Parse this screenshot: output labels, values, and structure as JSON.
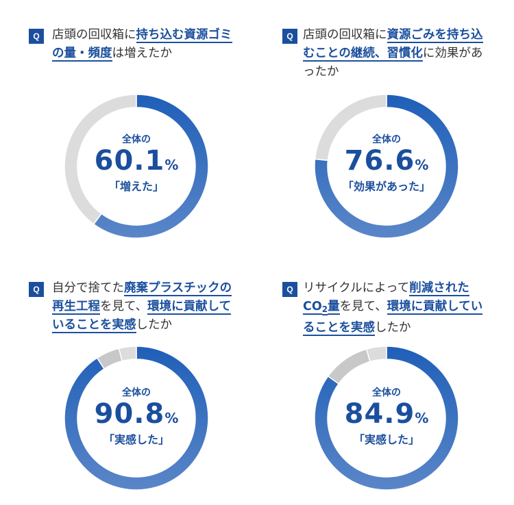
{
  "charts": [
    {
      "q_badge": "Q",
      "question": [
        {
          "t": "店頭の回収箱に",
          "hl": false
        },
        {
          "t": "持ち込む資源ゴミの量・頻度",
          "hl": true
        },
        {
          "t": "は増えたか",
          "hl": false
        }
      ],
      "label": "全体の",
      "value": "60.1",
      "unit": "%",
      "tag": "「増えた」"
    },
    {
      "q_badge": "Q",
      "question": [
        {
          "t": "店頭の回収箱に",
          "hl": false
        },
        {
          "t": "資源ごみを持ち込むことの継続、習慣化",
          "hl": true
        },
        {
          "t": "に効果があったか",
          "hl": false
        }
      ],
      "label": "全体の",
      "value": "76.6",
      "unit": "%",
      "tag": "「効果があった」"
    },
    {
      "q_badge": "Q",
      "question": [
        {
          "t": "自分で捨てた",
          "hl": false
        },
        {
          "t": "廃棄プラスチックの再生工程",
          "hl": true
        },
        {
          "t": "を見て、",
          "hl": false
        },
        {
          "t": "環境に貢献していることを実感",
          "hl": true
        },
        {
          "t": "したか",
          "hl": false
        }
      ],
      "label": "全体の",
      "value": "90.8",
      "unit": "%",
      "tag": "「実感した」"
    },
    {
      "q_badge": "Q",
      "question": [
        {
          "t": "リサイクルによって",
          "hl": false
        },
        {
          "t": "削減されたCO",
          "hl": true
        },
        {
          "t": "2",
          "hl": true,
          "sub": true
        },
        {
          "t": "量",
          "hl": true
        },
        {
          "t": "を見て、",
          "hl": false
        },
        {
          "t": "環境に貢献していることを実感",
          "hl": true
        },
        {
          "t": "したか",
          "hl": false
        }
      ],
      "label": "全体の",
      "value": "84.9",
      "unit": "%",
      "tag": "「実感した」"
    }
  ],
  "colors": {
    "accent": "#1b4f9e",
    "fill_start": "#1f5fb8",
    "fill_end": "#5a86c8",
    "remainder_main": "#dcdcdc",
    "remainder_alt": "#c8c8c8"
  },
  "chart_data": [
    {
      "type": "pie",
      "variant": "donut",
      "values": [
        60.1,
        39.9
      ],
      "categories": [
        "増えた",
        ""
      ]
    },
    {
      "type": "pie",
      "variant": "donut",
      "values": [
        76.6,
        23.4
      ],
      "categories": [
        "効果があった",
        ""
      ]
    },
    {
      "type": "pie",
      "variant": "donut",
      "values": [
        90.8,
        5.3,
        3.9
      ],
      "categories": [
        "実感した",
        "",
        ""
      ]
    },
    {
      "type": "pie",
      "variant": "donut",
      "values": [
        84.9,
        10.6,
        4.5
      ],
      "categories": [
        "実感した",
        "",
        ""
      ]
    }
  ]
}
